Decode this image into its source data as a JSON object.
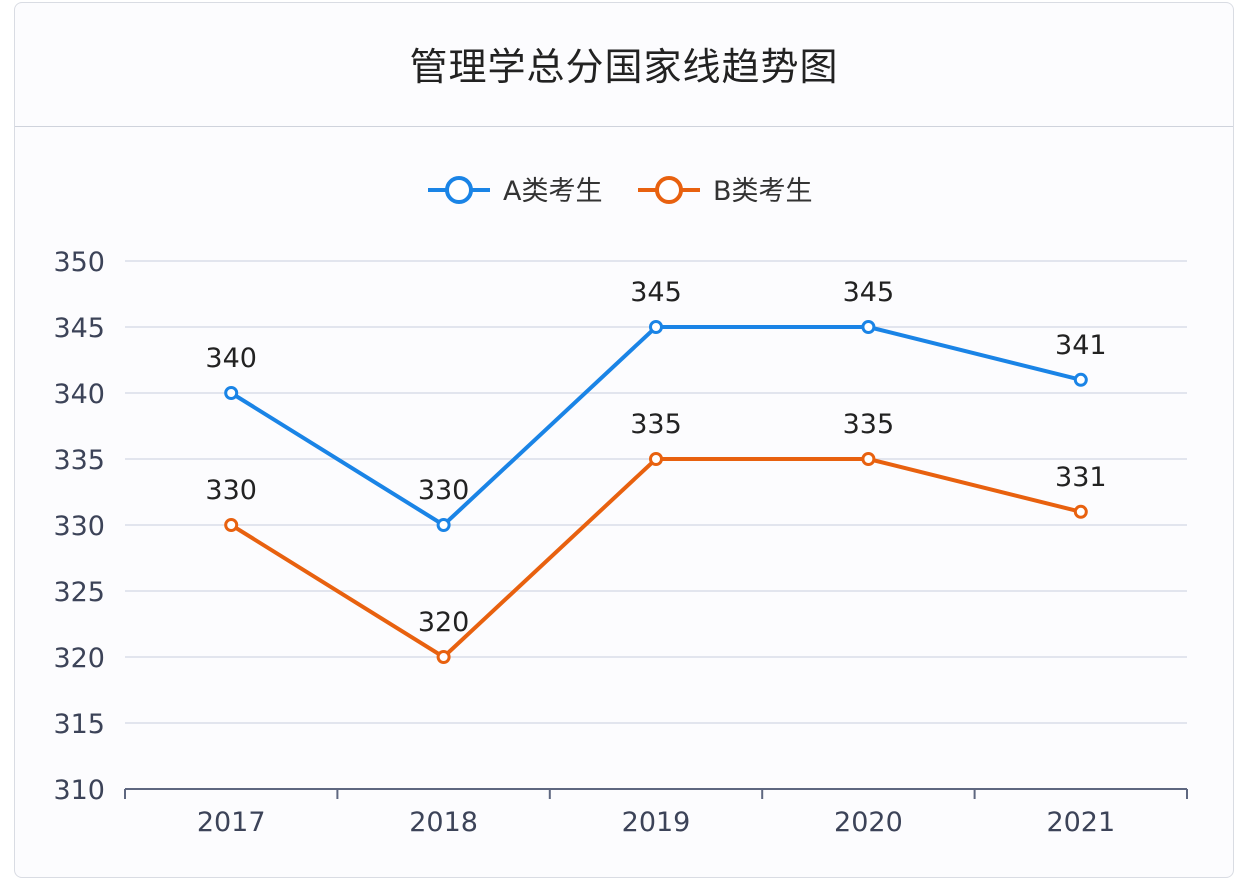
{
  "page": {
    "title": "管理学总分国家线趋势图"
  },
  "chart_data": {
    "type": "line",
    "title": "管理学总分国家线趋势图",
    "xlabel": "",
    "ylabel": "",
    "categories": [
      "2017",
      "2018",
      "2019",
      "2020",
      "2021"
    ],
    "ylim": [
      310,
      350
    ],
    "yticks": [
      310,
      315,
      320,
      325,
      330,
      335,
      340,
      345,
      350
    ],
    "grid": true,
    "legend_position": "top-center",
    "data_labels": true,
    "series": [
      {
        "name": "A类考生",
        "color": "#1a84e6",
        "values": [
          340,
          330,
          345,
          345,
          341
        ]
      },
      {
        "name": "B类考生",
        "color": "#e8610f",
        "values": [
          330,
          320,
          335,
          335,
          331
        ]
      }
    ]
  }
}
